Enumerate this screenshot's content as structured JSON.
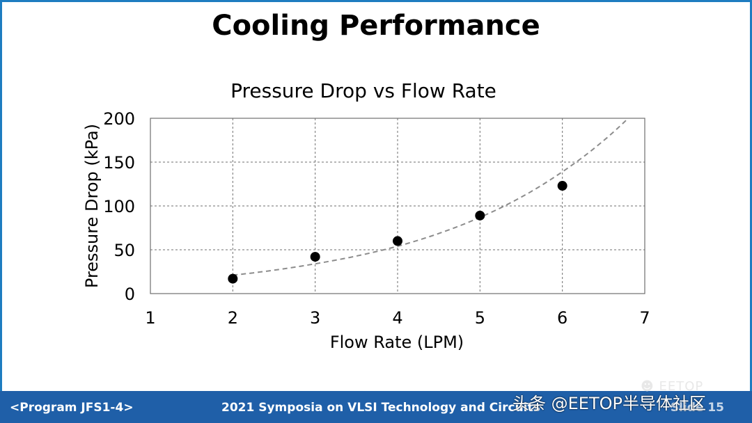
{
  "slide": {
    "title": "Cooling Performance",
    "footer_left": "<Program JFS1-4>",
    "footer_center": "2021 Symposia on VLSI Technology and Circuits",
    "footer_right": "Slide 15"
  },
  "watermark": {
    "text": "头条 @EETOP半导体社区",
    "logo": "EETOP"
  },
  "colors": {
    "frame": "#1e7cc0",
    "footer_bg": "#1f5fa8",
    "points": "#000000",
    "trendline": "#8c8c8c",
    "grid": "#6e6e6e"
  },
  "chart_data": {
    "type": "scatter",
    "title": "Pressure Drop vs Flow Rate",
    "xlabel": "Flow Rate (LPM)",
    "ylabel": "Pressure Drop (kPa)",
    "xlim": [
      1,
      7
    ],
    "ylim": [
      0,
      200
    ],
    "xticks": [
      1,
      2,
      3,
      4,
      5,
      6,
      7
    ],
    "yticks": [
      0,
      50,
      100,
      150,
      200
    ],
    "grid": true,
    "points": [
      {
        "x": 2,
        "y": 17
      },
      {
        "x": 3,
        "y": 42
      },
      {
        "x": 4,
        "y": 60
      },
      {
        "x": 5,
        "y": 89
      },
      {
        "x": 6,
        "y": 123
      }
    ],
    "trendline": {
      "kind": "exponential",
      "style": "dashed",
      "samples": [
        {
          "x": 2,
          "y": 21
        },
        {
          "x": 3,
          "y": 34
        },
        {
          "x": 4,
          "y": 54
        },
        {
          "x": 5,
          "y": 87
        },
        {
          "x": 6,
          "y": 139
        },
        {
          "x": 6.8,
          "y": 200
        }
      ]
    }
  }
}
